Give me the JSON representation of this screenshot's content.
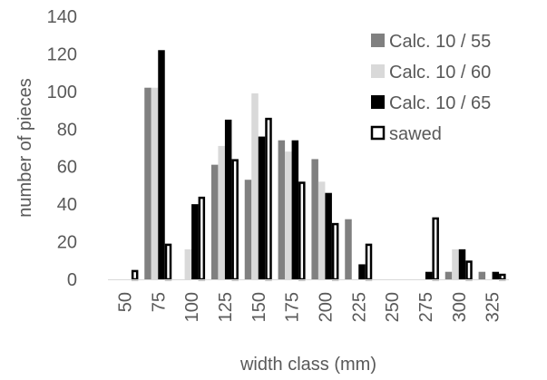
{
  "chart_data": {
    "type": "bar",
    "title": "",
    "xlabel": "width class (mm)",
    "ylabel": "number of pieces",
    "categories": [
      "50",
      "75",
      "100",
      "125",
      "150",
      "175",
      "200",
      "225",
      "250",
      "275",
      "300",
      "325"
    ],
    "ylim": [
      0,
      140
    ],
    "yticks": [
      0,
      20,
      40,
      60,
      80,
      100,
      120,
      140
    ],
    "grid": false,
    "legend_position": "top-right",
    "series": [
      {
        "name": "Calc. 10 / 55",
        "color": "#808080",
        "style": "solid",
        "values": [
          0,
          102,
          0,
          61,
          53,
          74,
          64,
          32,
          0,
          0,
          4,
          4
        ]
      },
      {
        "name": "Calc. 10 / 60",
        "color": "#d9d9d9",
        "style": "solid",
        "values": [
          0,
          102,
          16,
          71,
          99,
          68,
          52,
          0,
          0,
          0,
          16,
          0
        ]
      },
      {
        "name": "Calc. 10 / 65",
        "color": "#000000",
        "style": "solid",
        "values": [
          0,
          122,
          40,
          85,
          76,
          74,
          46,
          8,
          0,
          4,
          16,
          4
        ]
      },
      {
        "name": "sawed",
        "color": "#000000",
        "style": "outline",
        "values": [
          5,
          19,
          44,
          64,
          86,
          52,
          30,
          19,
          0,
          33,
          10,
          3
        ]
      }
    ]
  }
}
